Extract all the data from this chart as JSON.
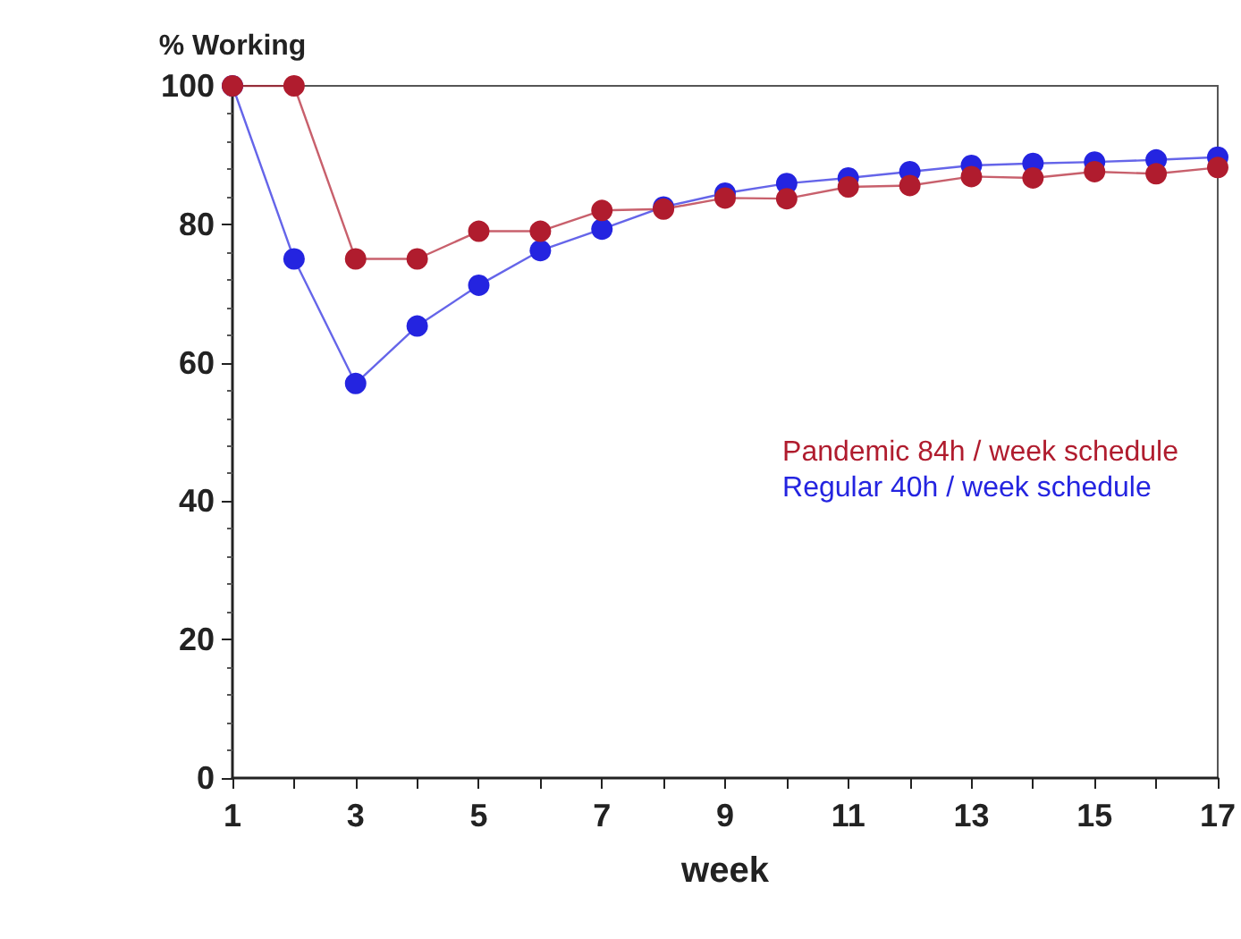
{
  "chart_data": {
    "type": "line",
    "xlabel": "week",
    "ylabel": "% Working",
    "x": [
      1,
      2,
      3,
      4,
      5,
      6,
      7,
      8,
      9,
      10,
      11,
      12,
      13,
      14,
      15,
      16,
      17
    ],
    "series": [
      {
        "name": "Pandemic 84h / week schedule",
        "color": "#b01c2e",
        "values": [
          100,
          100,
          75,
          75,
          79,
          79,
          82,
          82.2,
          83.8,
          83.7,
          85.4,
          85.6,
          86.9,
          86.7,
          87.6,
          87.3,
          88.2
        ]
      },
      {
        "name": "Regular 40h / week schedule",
        "color": "#2424e0",
        "values": [
          100,
          75,
          57,
          65.3,
          71.2,
          76.2,
          79.3,
          82.5,
          84.5,
          85.9,
          86.7,
          87.6,
          88.5,
          88.8,
          89,
          89.3,
          89.7
        ]
      }
    ],
    "xlim": [
      1,
      17
    ],
    "xticks": [
      1,
      {
        "value": 2,
        "label": null
      },
      3,
      {
        "value": 4,
        "label": null
      },
      5,
      {
        "value": 6,
        "label": null
      },
      7,
      {
        "value": 8,
        "label": null
      },
      9,
      {
        "value": 10,
        "label": null
      },
      11,
      {
        "value": 12,
        "label": null
      },
      13,
      {
        "value": 14,
        "label": null
      },
      15,
      {
        "value": 16,
        "label": null
      },
      17
    ],
    "ylim": [
      0,
      100
    ],
    "yticks": [
      0,
      20,
      40,
      60,
      80,
      100
    ],
    "grid": false,
    "legend": "right",
    "marker": "circle",
    "line_style": "solid"
  }
}
